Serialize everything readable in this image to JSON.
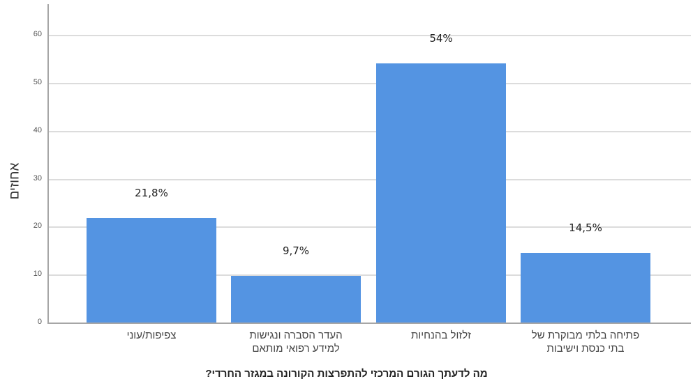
{
  "chart_data": {
    "type": "bar",
    "title": "",
    "xlabel": "מה לדעתך הגורם המרכזי להתפרצות הקורונה במגזר החרדי?",
    "ylabel": "אחוזים",
    "ylim": [
      0,
      66
    ],
    "yticks": [
      "0",
      "10",
      "20",
      "30",
      "40",
      "50",
      "60"
    ],
    "grid": true,
    "bar_color": "#5494e2",
    "categories": [
      "צפיפות/עוני",
      "העדר הסברה ונגישות למידע רפואי מותאם",
      "זלזול בהנחיות",
      "פתיחה בלתי מבוקרת של בתי כנסת וישיבות"
    ],
    "category_lines": [
      [
        "צפיפות/עוני"
      ],
      [
        "העדר הסברה ונגישות",
        "למידע רפואי מותאם"
      ],
      [
        "זלזול בהנחיות"
      ],
      [
        "פתיחה בלתי מבוקרת של",
        "בתי כנסת וישיבות"
      ]
    ],
    "values": [
      21.8,
      9.7,
      54,
      14.5
    ],
    "data_labels": [
      "21,8%",
      "9,7%",
      "54%",
      "14,5%"
    ]
  }
}
